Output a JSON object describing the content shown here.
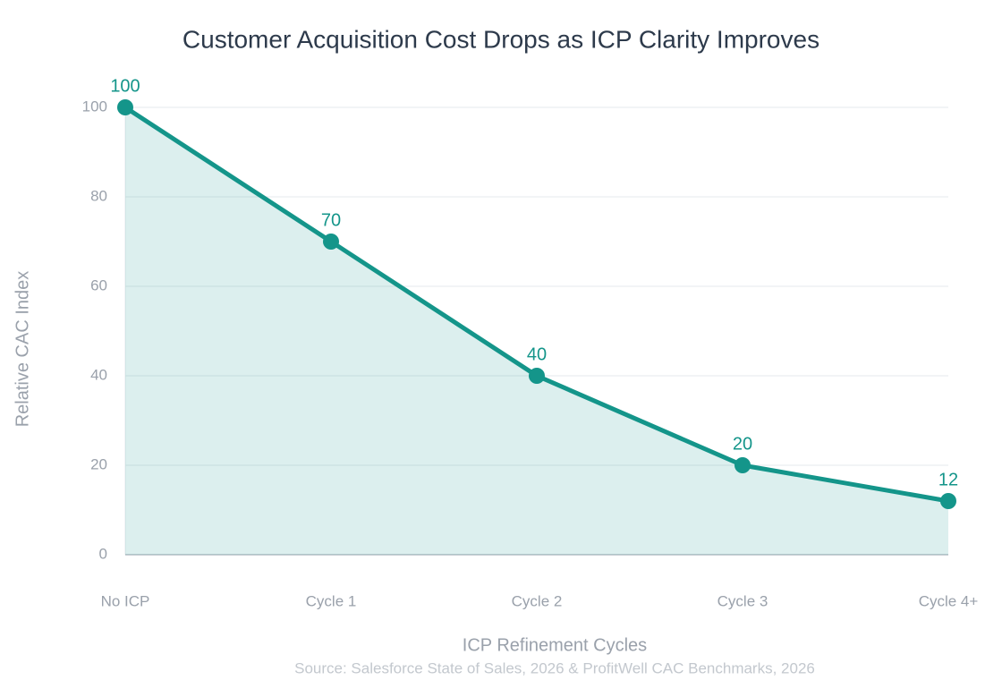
{
  "chart_data": {
    "type": "line",
    "title": "Customer Acquisition Cost Drops as ICP Clarity Improves",
    "x_label": "ICP Refinement Cycles",
    "y_label": "Relative CAC Index",
    "source": "Source: Salesforce State of Sales, 2026 & ProfitWell CAC Benchmarks, 2026",
    "categories": [
      "No ICP",
      "Cycle 1",
      "Cycle 2",
      "Cycle 3",
      "Cycle 4+"
    ],
    "series": [
      {
        "name": "Relative CAC Index",
        "color": "#14958a",
        "values": [
          100,
          70,
          40,
          20,
          12
        ]
      }
    ],
    "area": true,
    "ylim": [
      0,
      100
    ],
    "yticks": [
      0,
      20,
      40,
      60,
      80,
      100
    ],
    "grid": true
  }
}
